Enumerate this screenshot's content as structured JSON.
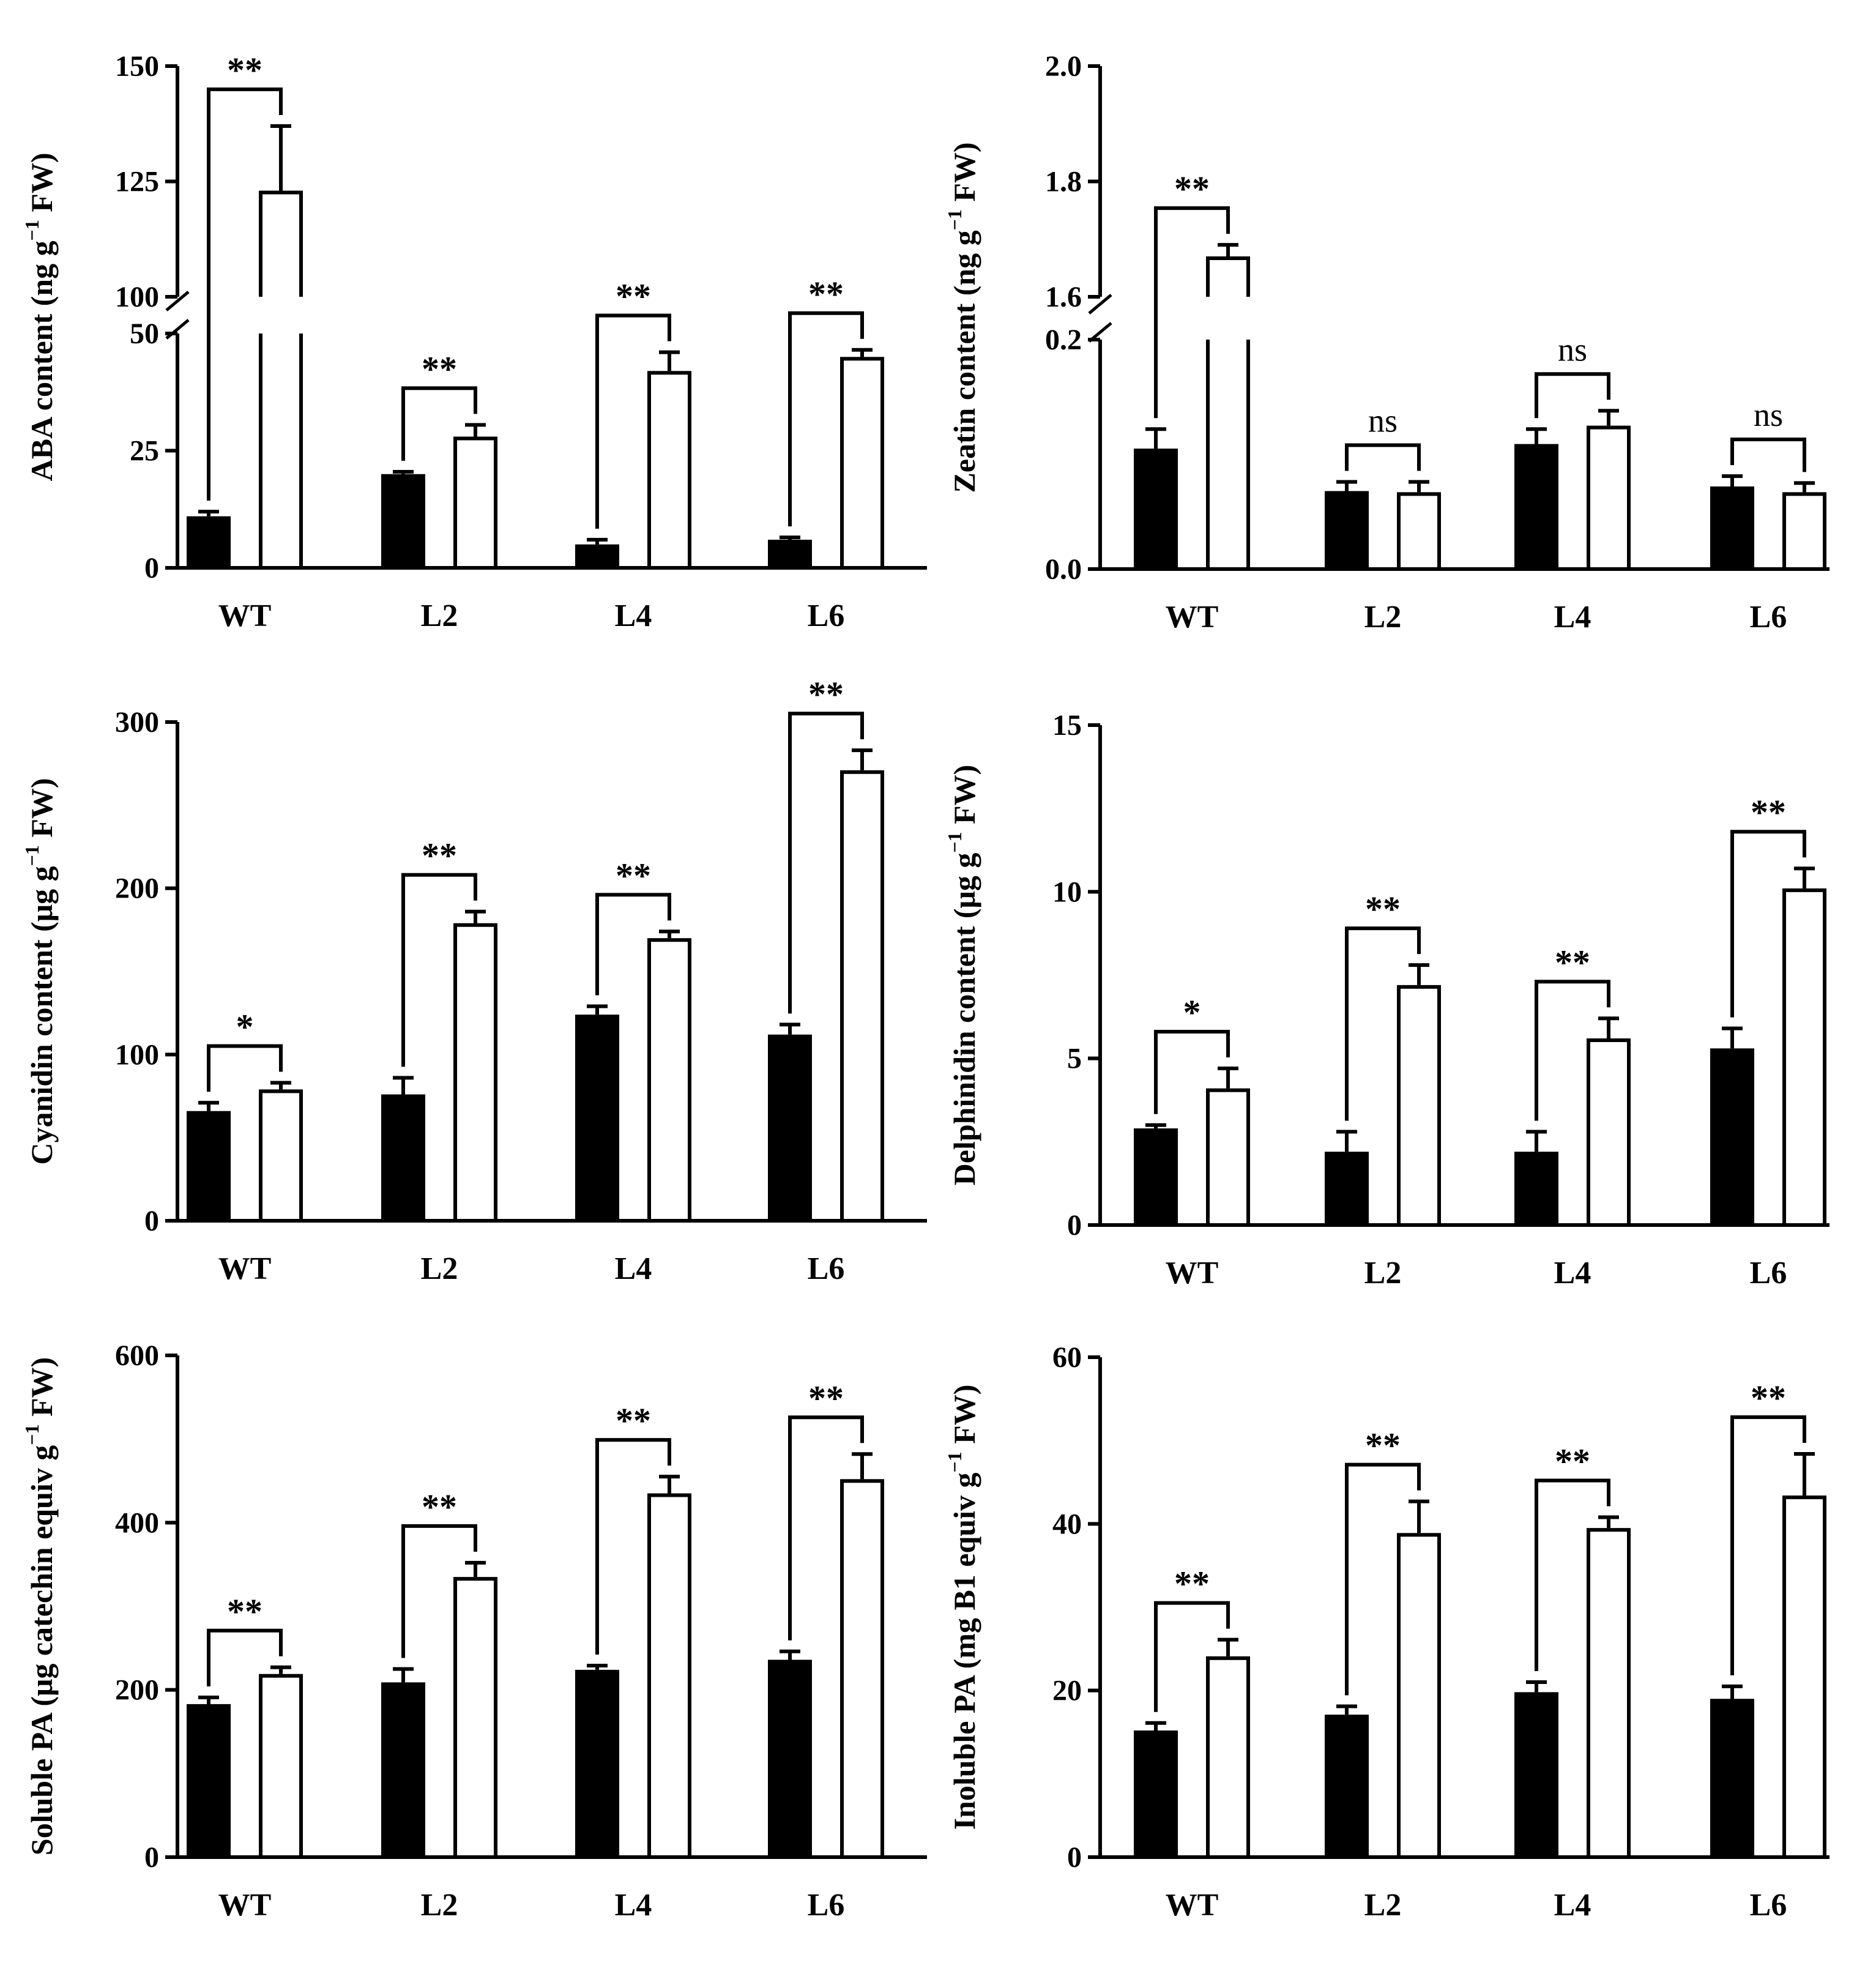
{
  "chart_data": [
    {
      "id": "aba",
      "type": "bar",
      "ylabel": "ABA content (ng g^-1 FW)",
      "ylabel_parts": {
        "before": "ABA content (ng g",
        "sup": "−1",
        "after": " FW)"
      },
      "categories": [
        "WT",
        "L2",
        "L4",
        "L6"
      ],
      "series": [
        {
          "name": "filled",
          "color": "#000000",
          "values": [
            11,
            20,
            5,
            6
          ],
          "errors": [
            1,
            0.5,
            1,
            0.5
          ]
        },
        {
          "name": "open",
          "color": "#ffffff",
          "values": [
            123,
            28,
            42,
            45
          ],
          "errors": [
            14,
            2.5,
            4,
            1.5
          ]
        }
      ],
      "broken_axis": {
        "lower": {
          "range": [
            0,
            50
          ],
          "ticks": [
            0,
            25,
            50
          ]
        },
        "upper": {
          "range": [
            100,
            150
          ],
          "ticks": [
            100,
            125,
            150
          ]
        }
      },
      "tick_labels": [
        "0",
        "25",
        "50",
        "100",
        "125",
        "150"
      ],
      "significance": [
        "**",
        "**",
        "**",
        "**"
      ]
    },
    {
      "id": "zeatin",
      "type": "bar",
      "ylabel": "Zeatin content (ng g^-1 FW)",
      "ylabel_parts": {
        "before": "Zeatin content (ng g",
        "sup": "−1",
        "after": " FW)"
      },
      "categories": [
        "WT",
        "L2",
        "L4",
        "L6"
      ],
      "series": [
        {
          "name": "filled",
          "color": "#000000",
          "values": [
            0.105,
            0.068,
            0.109,
            0.072
          ],
          "errors": [
            0.017,
            0.008,
            0.013,
            0.009
          ]
        },
        {
          "name": "open",
          "color": "#ffffff",
          "values": [
            1.67,
            0.067,
            0.125,
            0.067
          ],
          "errors": [
            0.02,
            0.009,
            0.013,
            0.008
          ]
        }
      ],
      "broken_axis": {
        "lower": {
          "range": [
            0,
            0.2
          ],
          "ticks": [
            0,
            0.2
          ]
        },
        "upper": {
          "range": [
            1.6,
            2.0
          ],
          "ticks": [
            1.6,
            1.8,
            2.0
          ]
        }
      },
      "tick_labels": [
        "0.0",
        "0.2",
        "1.6",
        "1.8",
        "2.0"
      ],
      "significance": [
        "**",
        "ns",
        "ns",
        "ns"
      ]
    },
    {
      "id": "cyanidin",
      "type": "bar",
      "ylabel": "Cyanidin content (μg g^-1 FW)",
      "ylabel_parts": {
        "before": "Cyanidin content (μg g",
        "sup": "−1",
        "after": " FW)"
      },
      "categories": [
        "WT",
        "L2",
        "L4",
        "L6"
      ],
      "series": [
        {
          "name": "filled",
          "color": "#000000",
          "values": [
            66,
            76,
            124,
            112
          ],
          "errors": [
            5,
            10,
            5,
            6
          ]
        },
        {
          "name": "open",
          "color": "#ffffff",
          "values": [
            79,
            179,
            170,
            271
          ],
          "errors": [
            4,
            7,
            4,
            12
          ]
        }
      ],
      "ylim": [
        0,
        300
      ],
      "ticks": [
        0,
        100,
        200,
        300
      ],
      "tick_labels": [
        "0",
        "100",
        "200",
        "300"
      ],
      "significance": [
        "*",
        "**",
        "**",
        "**"
      ]
    },
    {
      "id": "delphinidin",
      "type": "bar",
      "ylabel": "Delphinidin content (μg g^-1 FW)",
      "ylabel_parts": {
        "before": "Delphinidin content (μg g",
        "sup": "−1",
        "after": " FW)"
      },
      "categories": [
        "WT",
        "L2",
        "L4",
        "L6"
      ],
      "series": [
        {
          "name": "filled",
          "color": "#000000",
          "values": [
            2.9,
            2.2,
            2.2,
            5.3
          ],
          "errors": [
            0.1,
            0.6,
            0.6,
            0.6
          ]
        },
        {
          "name": "open",
          "color": "#ffffff",
          "values": [
            4.1,
            7.2,
            5.6,
            10.1
          ],
          "errors": [
            0.6,
            0.6,
            0.6,
            0.6
          ]
        }
      ],
      "ylim": [
        0,
        15
      ],
      "ticks": [
        0,
        5,
        10,
        15
      ],
      "tick_labels": [
        "0",
        "5",
        "10",
        "15"
      ],
      "significance": [
        "*",
        "**",
        "**",
        "**"
      ]
    },
    {
      "id": "soluble_pa",
      "type": "bar",
      "ylabel": "Soluble PA (μg catechin equiv g^-1 FW)",
      "ylabel_parts": {
        "before": "Soluble PA (μg catechin equiv g",
        "sup": "−1",
        "after": " FW)"
      },
      "categories": [
        "WT",
        "L2",
        "L4",
        "L6"
      ],
      "series": [
        {
          "name": "filled",
          "color": "#000000",
          "values": [
            183,
            209,
            224,
            236
          ],
          "errors": [
            8,
            16,
            5,
            10
          ]
        },
        {
          "name": "open",
          "color": "#ffffff",
          "values": [
            219,
            335,
            435,
            452
          ],
          "errors": [
            8,
            17,
            20,
            30
          ]
        }
      ],
      "ylim": [
        0,
        600
      ],
      "ticks": [
        0,
        200,
        400,
        600
      ],
      "tick_labels": [
        "0",
        "200",
        "400",
        "600"
      ],
      "significance": [
        "**",
        "**",
        "**",
        "**"
      ]
    },
    {
      "id": "insoluble_pa",
      "type": "bar",
      "ylabel": "Inoluble PA (mg B1 equiv g^-1 FW)",
      "ylabel_parts": {
        "before": "Inoluble PA (mg B1 equiv g",
        "sup": "−1",
        "after": " FW)"
      },
      "categories": [
        "WT",
        "L2",
        "L4",
        "L6"
      ],
      "series": [
        {
          "name": "filled",
          "color": "#000000",
          "values": [
            15.2,
            17.1,
            19.8,
            19.0
          ],
          "errors": [
            0.9,
            1.0,
            1.2,
            1.5
          ]
        },
        {
          "name": "open",
          "color": "#ffffff",
          "values": [
            24.1,
            38.9,
            39.5,
            43.4
          ],
          "errors": [
            2.0,
            3.8,
            1.3,
            5.0
          ]
        }
      ],
      "ylim": [
        0,
        60
      ],
      "ticks": [
        0,
        20,
        40,
        60
      ],
      "tick_labels": [
        "0",
        "20",
        "40",
        "60"
      ],
      "significance": [
        "**",
        "**",
        "**",
        "**"
      ]
    }
  ]
}
